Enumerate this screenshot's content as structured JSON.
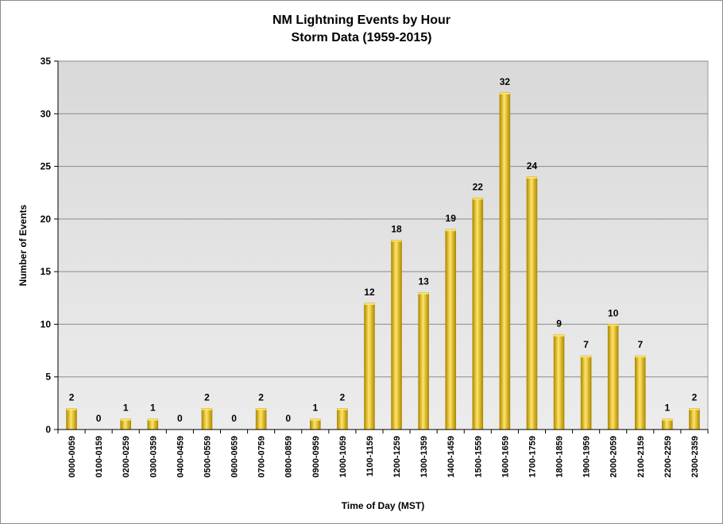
{
  "chart_data": {
    "type": "bar",
    "title": "NM Lightning Events by Hour",
    "subtitle": "Storm Data (1959-2015)",
    "xlabel": "Time of Day (MST)",
    "ylabel": "Number of Events",
    "ylim": [
      0,
      35
    ],
    "yticks": [
      0,
      5,
      10,
      15,
      20,
      25,
      30,
      35
    ],
    "grid": true,
    "legend": "none",
    "categories": [
      "0000-0059",
      "0100-0159",
      "0200-0259",
      "0300-0359",
      "0400-0459",
      "0500-0559",
      "0600-0659",
      "0700-0759",
      "0800-0859",
      "0900-0959",
      "1000-1059",
      "1100-1159",
      "1200-1259",
      "1300-1359",
      "1400-1459",
      "1500-1559",
      "1600-1659",
      "1700-1759",
      "1800-1859",
      "1900-1959",
      "2000-2059",
      "2100-2159",
      "2200-2259",
      "2300-2359"
    ],
    "values": [
      2,
      0,
      1,
      1,
      0,
      2,
      0,
      2,
      0,
      1,
      2,
      12,
      18,
      13,
      19,
      22,
      32,
      24,
      9,
      7,
      10,
      7,
      1,
      2
    ],
    "colors": {
      "bar": "#f0c000",
      "bar_dark": "#b08a00",
      "bar_light": "#ffe566",
      "plot_bg": "#e0e0e0"
    }
  }
}
